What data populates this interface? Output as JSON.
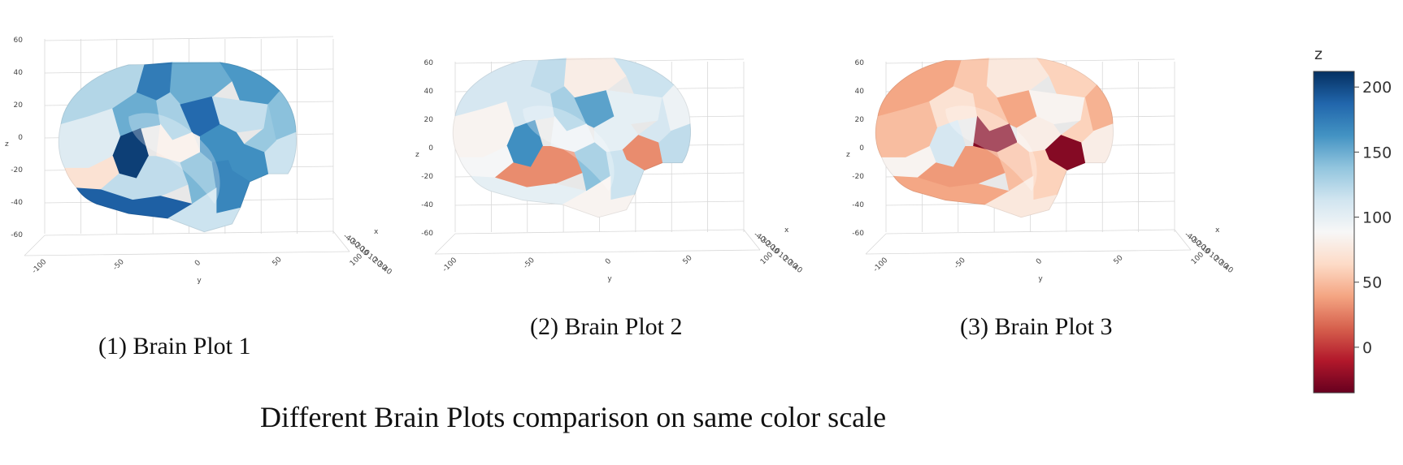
{
  "title": "Different Brain Plots comparison on same color scale",
  "colorbar": {
    "title": "z",
    "ticks": [
      0,
      50,
      100,
      150,
      200
    ],
    "range": [
      -35,
      212
    ],
    "colors": [
      "#67001f",
      "#b2182b",
      "#d6604d",
      "#f4a582",
      "#fddbc7",
      "#f7f7f7",
      "#d1e5f0",
      "#92c5de",
      "#4393c3",
      "#2166ac",
      "#053061"
    ]
  },
  "chart_data": [
    {
      "type": "other",
      "caption": "(1) Brain Plot 1",
      "axes": {
        "x": {
          "name": "x",
          "ticks": [
            "-40",
            "-30",
            "-20",
            "-10",
            "0",
            "10",
            "20",
            "30",
            "40"
          ]
        },
        "y": {
          "name": "y",
          "ticks": [
            "-100",
            "-50",
            "0",
            "50",
            "100"
          ]
        },
        "z": {
          "name": "z",
          "ticks": [
            "60",
            "40",
            "20",
            "0",
            "-20",
            "-40",
            "-60"
          ]
        }
      },
      "region_values": [
        125,
        175,
        150,
        160,
        140,
        115,
        105,
        150,
        130,
        185,
        118,
        135,
        205,
        80,
        165,
        165,
        70,
        120,
        145,
        170,
        190,
        115
      ]
    },
    {
      "type": "other",
      "caption": "(2) Brain Plot 2",
      "axes": {
        "x": {
          "name": "x",
          "ticks": [
            "-40",
            "-30",
            "-20",
            "-10",
            "0",
            "10",
            "20",
            "30",
            "40"
          ]
        },
        "y": {
          "name": "y",
          "ticks": [
            "-100",
            "-50",
            "0",
            "50",
            "100"
          ]
        },
        "z": {
          "name": "z",
          "ticks": [
            "60",
            "40",
            "20",
            "0",
            "-20",
            "-40",
            "-60"
          ]
        }
      },
      "region_values": [
        110,
        120,
        80,
        115,
        95,
        120,
        85,
        110,
        130,
        155,
        100,
        110,
        165,
        95,
        100,
        30,
        90,
        30,
        140,
        115,
        100,
        85
      ]
    },
    {
      "type": "other",
      "caption": "(3) Brain Plot 3",
      "axes": {
        "x": {
          "name": "x",
          "ticks": [
            "-40",
            "-30",
            "-20",
            "-10",
            "0",
            "10",
            "20",
            "30",
            "40"
          ]
        },
        "y": {
          "name": "y",
          "ticks": [
            "-100",
            "-50",
            "0",
            "50",
            "100"
          ]
        },
        "z": {
          "name": "z",
          "ticks": [
            "60",
            "40",
            "20",
            "0",
            "-20",
            "-40",
            "-60"
          ]
        }
      },
      "region_values": [
        40,
        55,
        75,
        60,
        45,
        80,
        50,
        70,
        55,
        40,
        85,
        60,
        110,
        -25,
        80,
        -25,
        85,
        35,
        50,
        60,
        40,
        75
      ]
    }
  ]
}
